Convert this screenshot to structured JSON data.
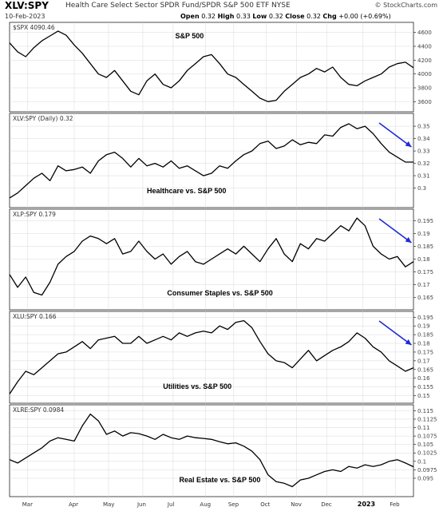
{
  "header": {
    "ticker": "XLV:SPY",
    "full_name": "Health Care Select Sector SPDR Fund/SPDR S&P 500 ETF",
    "exchange": "NYSE",
    "date": "10-Feb-2023",
    "open_label": "Open",
    "open": "0.32",
    "high_label": "High",
    "high": "0.33",
    "low_label": "Low",
    "low": "0.32",
    "close_label": "Close",
    "close": "0.32",
    "chg_label": "Chg",
    "chg": "+0.00 (+0.69%)",
    "brand": "© StockCharts.com"
  },
  "x_labels": [
    "Mar",
    "Apr",
    "May",
    "Jun",
    "Jul",
    "Aug",
    "Sep",
    "Oct",
    "Nov",
    "Dec",
    "2023",
    "Feb"
  ],
  "colors": {
    "line": "#000000",
    "arrow": "#1f2bd6",
    "grid": "#d8d8d8"
  },
  "chart_data": [
    {
      "type": "line",
      "title": "$SPX 4090.46",
      "annotation": "S&P 500",
      "ylim": [
        3500,
        4700
      ],
      "yticks": [
        3600,
        3800,
        4000,
        4200,
        4400,
        4600
      ],
      "x": [
        0,
        0.02,
        0.04,
        0.06,
        0.08,
        0.1,
        0.12,
        0.14,
        0.16,
        0.18,
        0.2,
        0.22,
        0.24,
        0.26,
        0.28,
        0.3,
        0.32,
        0.34,
        0.36,
        0.38,
        0.4,
        0.42,
        0.44,
        0.46,
        0.48,
        0.5,
        0.52,
        0.54,
        0.56,
        0.58,
        0.6,
        0.62,
        0.64,
        0.66,
        0.68,
        0.7,
        0.72,
        0.74,
        0.76,
        0.78,
        0.8,
        0.82,
        0.84,
        0.86,
        0.88,
        0.9,
        0.92,
        0.94,
        0.96,
        0.98,
        1.0
      ],
      "values": [
        4450,
        4320,
        4250,
        4380,
        4480,
        4550,
        4620,
        4560,
        4420,
        4300,
        4150,
        4000,
        3950,
        4050,
        3900,
        3750,
        3700,
        3900,
        4000,
        3850,
        3800,
        3900,
        4050,
        4150,
        4250,
        4280,
        4150,
        4000,
        3950,
        3850,
        3750,
        3650,
        3600,
        3620,
        3750,
        3850,
        3950,
        4000,
        4080,
        4030,
        4100,
        3950,
        3850,
        3830,
        3900,
        3950,
        4000,
        4100,
        4150,
        4170,
        4090
      ],
      "arrow": false
    },
    {
      "type": "line",
      "title": "XLV:SPY (Daily) 0.32",
      "annotation": "Healthcare vs. S&P 500",
      "ylim": [
        0.2868,
        0.3578
      ],
      "yticks": [
        0.3,
        0.31,
        0.32,
        0.33,
        0.34,
        0.35
      ],
      "x": [
        0,
        0.02,
        0.04,
        0.06,
        0.08,
        0.1,
        0.12,
        0.14,
        0.16,
        0.18,
        0.2,
        0.22,
        0.24,
        0.26,
        0.28,
        0.3,
        0.32,
        0.34,
        0.36,
        0.38,
        0.4,
        0.42,
        0.44,
        0.46,
        0.48,
        0.5,
        0.52,
        0.54,
        0.56,
        0.58,
        0.6,
        0.62,
        0.64,
        0.66,
        0.68,
        0.7,
        0.72,
        0.74,
        0.76,
        0.78,
        0.8,
        0.82,
        0.84,
        0.86,
        0.88,
        0.9,
        0.92,
        0.94,
        0.96,
        0.98,
        1.0
      ],
      "values": [
        0.292,
        0.296,
        0.302,
        0.308,
        0.312,
        0.306,
        0.318,
        0.314,
        0.315,
        0.317,
        0.312,
        0.322,
        0.327,
        0.329,
        0.324,
        0.317,
        0.324,
        0.318,
        0.32,
        0.317,
        0.322,
        0.316,
        0.318,
        0.314,
        0.31,
        0.312,
        0.318,
        0.316,
        0.322,
        0.327,
        0.33,
        0.336,
        0.338,
        0.332,
        0.334,
        0.339,
        0.335,
        0.337,
        0.336,
        0.343,
        0.342,
        0.349,
        0.352,
        0.348,
        0.35,
        0.344,
        0.336,
        0.329,
        0.325,
        0.321,
        0.321
      ],
      "arrow": true
    },
    {
      "type": "line",
      "title": "XLP:SPY 0.179",
      "annotation": "Consumer Staples vs. S&P 500",
      "ylim": [
        0.1615,
        0.1982
      ],
      "yticks": [
        0.165,
        0.17,
        0.175,
        0.18,
        0.185,
        0.19,
        0.195
      ],
      "x": [
        0,
        0.02,
        0.04,
        0.06,
        0.08,
        0.1,
        0.12,
        0.14,
        0.16,
        0.18,
        0.2,
        0.22,
        0.24,
        0.26,
        0.28,
        0.3,
        0.32,
        0.34,
        0.36,
        0.38,
        0.4,
        0.42,
        0.44,
        0.46,
        0.48,
        0.5,
        0.52,
        0.54,
        0.56,
        0.58,
        0.6,
        0.62,
        0.64,
        0.66,
        0.68,
        0.7,
        0.72,
        0.74,
        0.76,
        0.78,
        0.8,
        0.82,
        0.84,
        0.86,
        0.88,
        0.9,
        0.92,
        0.94,
        0.96,
        0.98,
        1.0
      ],
      "values": [
        0.174,
        0.169,
        0.173,
        0.167,
        0.166,
        0.171,
        0.178,
        0.181,
        0.183,
        0.187,
        0.189,
        0.188,
        0.186,
        0.188,
        0.182,
        0.183,
        0.187,
        0.183,
        0.18,
        0.182,
        0.178,
        0.181,
        0.183,
        0.179,
        0.178,
        0.18,
        0.182,
        0.184,
        0.182,
        0.185,
        0.182,
        0.179,
        0.184,
        0.188,
        0.182,
        0.179,
        0.186,
        0.184,
        0.188,
        0.187,
        0.19,
        0.193,
        0.191,
        0.196,
        0.193,
        0.185,
        0.182,
        0.18,
        0.181,
        0.177,
        0.179
      ],
      "arrow": true
    },
    {
      "type": "line",
      "title": "XLU:SPY 0.166",
      "annotation": "Utilities vs. S&P 500",
      "ylim": [
        0.1475,
        0.1965
      ],
      "yticks": [
        0.15,
        0.155,
        0.16,
        0.165,
        0.17,
        0.175,
        0.18,
        0.185,
        0.19,
        0.195
      ],
      "x": [
        0,
        0.02,
        0.04,
        0.06,
        0.08,
        0.1,
        0.12,
        0.14,
        0.16,
        0.18,
        0.2,
        0.22,
        0.24,
        0.26,
        0.28,
        0.3,
        0.32,
        0.34,
        0.36,
        0.38,
        0.4,
        0.42,
        0.44,
        0.46,
        0.48,
        0.5,
        0.52,
        0.54,
        0.56,
        0.58,
        0.6,
        0.62,
        0.64,
        0.66,
        0.68,
        0.7,
        0.72,
        0.74,
        0.76,
        0.78,
        0.8,
        0.82,
        0.84,
        0.86,
        0.88,
        0.9,
        0.92,
        0.94,
        0.96,
        0.98,
        1.0
      ],
      "values": [
        0.151,
        0.158,
        0.164,
        0.162,
        0.166,
        0.17,
        0.174,
        0.175,
        0.178,
        0.181,
        0.177,
        0.182,
        0.183,
        0.184,
        0.18,
        0.18,
        0.184,
        0.18,
        0.182,
        0.184,
        0.182,
        0.186,
        0.184,
        0.186,
        0.187,
        0.186,
        0.19,
        0.188,
        0.192,
        0.193,
        0.189,
        0.181,
        0.174,
        0.17,
        0.169,
        0.166,
        0.171,
        0.176,
        0.17,
        0.173,
        0.176,
        0.178,
        0.181,
        0.186,
        0.183,
        0.178,
        0.175,
        0.17,
        0.167,
        0.164,
        0.166
      ],
      "arrow": true
    },
    {
      "type": "line",
      "title": "XLRE:SPY 0.0984",
      "annotation": "Real Estate vs. S&P 500",
      "ylim": [
        0.0905,
        0.1158
      ],
      "yticks": [
        0.095,
        0.0975,
        0.1,
        0.1025,
        0.105,
        0.1075,
        0.11,
        0.1125,
        0.115
      ],
      "x": [
        0,
        0.02,
        0.04,
        0.06,
        0.08,
        0.1,
        0.12,
        0.14,
        0.16,
        0.18,
        0.2,
        0.22,
        0.24,
        0.26,
        0.28,
        0.3,
        0.32,
        0.34,
        0.36,
        0.38,
        0.4,
        0.42,
        0.44,
        0.46,
        0.48,
        0.5,
        0.52,
        0.54,
        0.56,
        0.58,
        0.6,
        0.62,
        0.64,
        0.66,
        0.68,
        0.7,
        0.72,
        0.74,
        0.76,
        0.78,
        0.8,
        0.82,
        0.84,
        0.86,
        0.88,
        0.9,
        0.92,
        0.94,
        0.96,
        0.98,
        1.0
      ],
      "values": [
        0.1005,
        0.0995,
        0.101,
        0.1025,
        0.104,
        0.106,
        0.107,
        0.1065,
        0.106,
        0.1105,
        0.114,
        0.112,
        0.108,
        0.109,
        0.1075,
        0.1085,
        0.1082,
        0.1075,
        0.1065,
        0.108,
        0.107,
        0.1065,
        0.1075,
        0.107,
        0.1068,
        0.1065,
        0.1058,
        0.1052,
        0.1055,
        0.1045,
        0.103,
        0.1005,
        0.096,
        0.094,
        0.0935,
        0.0925,
        0.0945,
        0.095,
        0.096,
        0.097,
        0.0975,
        0.097,
        0.0985,
        0.098,
        0.099,
        0.0985,
        0.099,
        0.1,
        0.1005,
        0.0995,
        0.0984
      ],
      "arrow": false
    }
  ]
}
